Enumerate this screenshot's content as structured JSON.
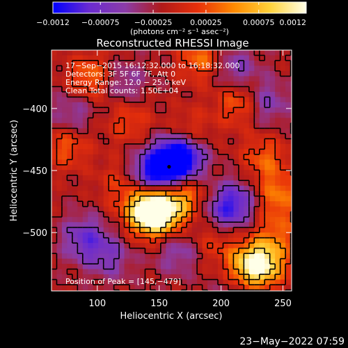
{
  "chart_data": {
    "type": "heatmap",
    "title": "Reconstructed RHESSI Image",
    "xlabel": "Heliocentric X (arcsec)",
    "ylabel": "Heliocentric Y (arcsec)",
    "xlim": [
      63,
      257
    ],
    "ylim": [
      -547,
      -353
    ],
    "x_ticks": [
      100,
      150,
      200,
      250
    ],
    "x_tick_labels": [
      "100",
      "150",
      "200",
      "250"
    ],
    "y_ticks": [
      -400,
      -450,
      -500
    ],
    "y_tick_labels": [
      "−400",
      "−450",
      "−500"
    ],
    "grid": false,
    "colorbar": {
      "position": "top",
      "range": [
        -0.0012,
        0.0012
      ],
      "ticks": [
        -0.0012,
        -0.00075,
        -0.00025,
        0.00025,
        0.00075,
        0.0012
      ],
      "tick_labels": [
        "−0.0012",
        "−0.00075",
        "−0.00025",
        "0.00025",
        "0.00075",
        "0.0012"
      ],
      "unit_label": "(photons cm⁻² s⁻¹ asec⁻²)",
      "colors": [
        "#0000ff",
        "#6a2bd0",
        "#8b3ca8",
        "#b01a1a",
        "#e8300a",
        "#ff8a00",
        "#ffd23a",
        "#ffffe8"
      ]
    },
    "annotations": [
      "17−Sep−2015 16:12:32.000 to 16:18:32.000",
      "Detectors: 3F 5F 6F 7F, Att 0",
      "Energy Range: 12.0 − 25.0 keV",
      "Clean    Total counts: 1.50E+04"
    ],
    "peak_label": "Position of Peak = [145,−479]",
    "center_marker": [
      158,
      -447
    ],
    "features": [
      {
        "x": 150,
        "y": -484,
        "value": 0.0012
      },
      {
        "x": 140,
        "y": -482,
        "value": 0.0011
      },
      {
        "x": 222,
        "y": -530,
        "value": 0.001
      },
      {
        "x": 235,
        "y": -524,
        "value": 0.0009
      },
      {
        "x": 170,
        "y": -470,
        "value": 0.0007
      },
      {
        "x": 95,
        "y": -375,
        "value": 0.0006
      },
      {
        "x": 75,
        "y": -430,
        "value": 0.0005
      },
      {
        "x": 185,
        "y": -360,
        "value": 0.0006
      },
      {
        "x": 215,
        "y": -395,
        "value": 0.0006
      },
      {
        "x": 235,
        "y": -440,
        "value": 0.0005
      },
      {
        "x": 245,
        "y": -470,
        "value": 0.0006
      },
      {
        "x": 125,
        "y": -410,
        "value": 0.0004
      },
      {
        "x": 175,
        "y": -420,
        "value": 0.0004
      },
      {
        "x": 120,
        "y": -460,
        "value": 0.0004
      },
      {
        "x": 195,
        "y": -505,
        "value": 0.0004
      },
      {
        "x": 245,
        "y": -500,
        "value": 0.0004
      },
      {
        "x": 158,
        "y": -447,
        "value": -0.0012
      },
      {
        "x": 170,
        "y": -438,
        "value": -0.0009
      },
      {
        "x": 140,
        "y": -455,
        "value": -0.0007
      },
      {
        "x": 213,
        "y": -475,
        "value": -0.0006
      },
      {
        "x": 200,
        "y": -485,
        "value": -0.0005
      },
      {
        "x": 210,
        "y": -368,
        "value": -0.0005
      },
      {
        "x": 235,
        "y": -395,
        "value": -0.0005
      },
      {
        "x": 90,
        "y": -505,
        "value": -0.0006
      },
      {
        "x": 110,
        "y": -520,
        "value": -0.0004
      },
      {
        "x": 120,
        "y": -380,
        "value": -0.0004
      },
      {
        "x": 80,
        "y": -405,
        "value": -0.0004
      },
      {
        "x": 165,
        "y": -515,
        "value": -0.0004
      },
      {
        "x": 215,
        "y": -545,
        "value": -0.0004
      }
    ]
  },
  "footer": {
    "timestamp": "23−May−2022 07:59"
  }
}
